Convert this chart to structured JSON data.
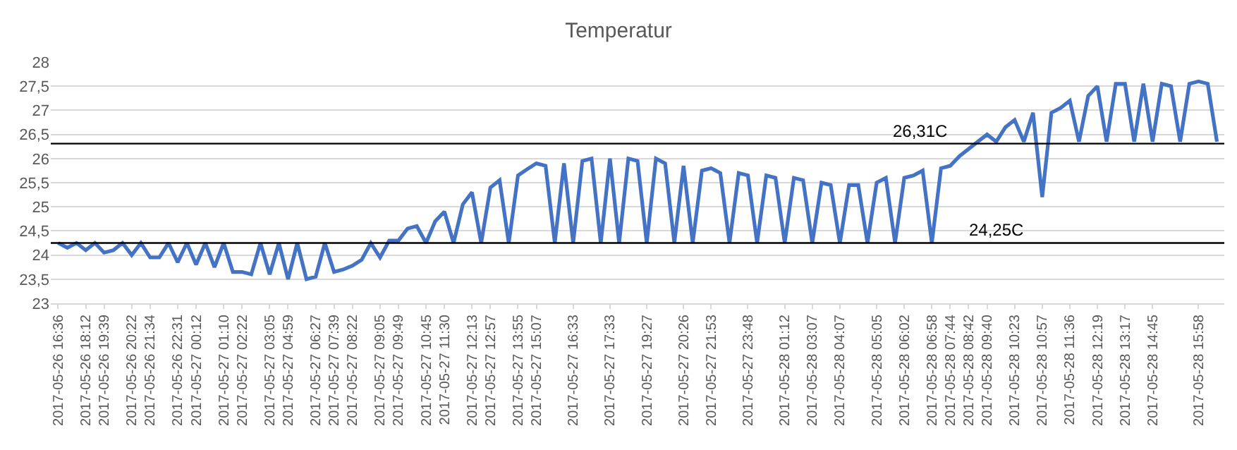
{
  "chart_data": {
    "type": "line",
    "title": "Temperatur",
    "categories": [
      "2017-05-26 16:36",
      null,
      null,
      "2017-05-26 18:12",
      null,
      "2017-05-26 19:39",
      null,
      null,
      "2017-05-26 20:22",
      null,
      "2017-05-26 21:34",
      null,
      null,
      "2017-05-26 22:31",
      null,
      "2017-05-27 00:12",
      null,
      null,
      "2017-05-27 01:10",
      null,
      "2017-05-27 02:22",
      null,
      null,
      "2017-05-27 03:05",
      null,
      "2017-05-27 04:59",
      null,
      null,
      "2017-05-27 06:27",
      null,
      "2017-05-27 07:39",
      null,
      "2017-05-27 08:22",
      null,
      null,
      "2017-05-27 09:05",
      null,
      "2017-05-27 09:49",
      null,
      null,
      "2017-05-27 10:45",
      null,
      "2017-05-27 11:30",
      null,
      null,
      "2017-05-27 12:13",
      null,
      "2017-05-27 12:57",
      null,
      null,
      "2017-05-27 13:55",
      null,
      "2017-05-27 15:07",
      null,
      null,
      null,
      "2017-05-27 16:33",
      null,
      null,
      null,
      "2017-05-27 17:33",
      null,
      null,
      null,
      "2017-05-27 19:27",
      null,
      null,
      null,
      "2017-05-27 20:26",
      null,
      null,
      "2017-05-27 21:53",
      null,
      null,
      null,
      "2017-05-27 23:48",
      null,
      null,
      null,
      "2017-05-28 01:12",
      null,
      null,
      "2017-05-28 03:07",
      null,
      null,
      "2017-05-28 04:07",
      null,
      null,
      null,
      "2017-05-28 05:05",
      null,
      null,
      "2017-05-28 06:02",
      null,
      null,
      "2017-05-28 06:58",
      null,
      "2017-05-28 07:44",
      null,
      "2017-05-28 08:42",
      null,
      "2017-05-28 09:40",
      null,
      null,
      "2017-05-28 10:23",
      null,
      null,
      "2017-05-28 10:57",
      null,
      null,
      "2017-05-28 11:36",
      null,
      null,
      "2017-05-28 12:19",
      null,
      null,
      "2017-05-28 13:17",
      null,
      null,
      "2017-05-28 14:45",
      null,
      null,
      null,
      null,
      "2017-05-28 15:58",
      null,
      null
    ],
    "series": [
      {
        "color": "#4472c4",
        "values": [
          24.25,
          24.15,
          24.25,
          24.1,
          24.25,
          24.05,
          24.1,
          24.25,
          24.0,
          24.25,
          23.95,
          23.95,
          24.25,
          23.85,
          24.25,
          23.8,
          24.25,
          23.75,
          24.25,
          23.65,
          23.65,
          23.6,
          24.25,
          23.6,
          24.25,
          23.5,
          24.25,
          23.5,
          23.55,
          24.25,
          23.65,
          23.7,
          23.78,
          23.9,
          24.25,
          23.95,
          24.3,
          24.3,
          24.55,
          24.6,
          24.25,
          24.7,
          24.9,
          24.25,
          25.05,
          25.3,
          24.25,
          25.4,
          25.55,
          24.25,
          25.65,
          25.78,
          25.9,
          25.85,
          24.25,
          25.9,
          24.25,
          25.95,
          26.0,
          24.25,
          26.0,
          24.25,
          26.0,
          25.95,
          24.25,
          26.0,
          25.9,
          24.25,
          25.85,
          24.25,
          25.75,
          25.8,
          25.7,
          24.25,
          25.7,
          25.65,
          24.25,
          25.65,
          25.6,
          24.25,
          25.6,
          25.55,
          24.25,
          25.5,
          25.45,
          24.25,
          25.45,
          25.45,
          24.25,
          25.5,
          25.6,
          24.25,
          25.6,
          25.65,
          25.75,
          24.25,
          25.8,
          25.85,
          26.05,
          26.2,
          26.35,
          26.5,
          26.35,
          26.65,
          26.8,
          26.35,
          26.95,
          25.2,
          26.95,
          27.05,
          27.2,
          26.35,
          27.3,
          27.5,
          26.35,
          27.55,
          27.55,
          26.35,
          27.55,
          26.35,
          27.55,
          27.5,
          26.35,
          27.55,
          27.6,
          27.55,
          26.35
        ]
      }
    ],
    "ylim": [
      23,
      28
    ],
    "yticks": [
      23,
      {
        "value": 23.5,
        "label": "23,5"
      },
      24,
      {
        "value": 24.5,
        "label": "24,5"
      },
      25,
      {
        "value": 25.5,
        "label": "25,5"
      },
      26,
      {
        "value": 26.5,
        "label": "26,5"
      },
      27,
      {
        "value": 27.5,
        "label": "27,5"
      },
      28
    ],
    "ref_lines": [
      {
        "axis": "y",
        "value": 26.31,
        "label": "26,31C",
        "color": "#000000"
      },
      {
        "axis": "y",
        "value": 24.25,
        "label": "24,25C",
        "color": "#000000"
      }
    ],
    "grid": "y",
    "marker": "none",
    "line_style": "solid"
  }
}
